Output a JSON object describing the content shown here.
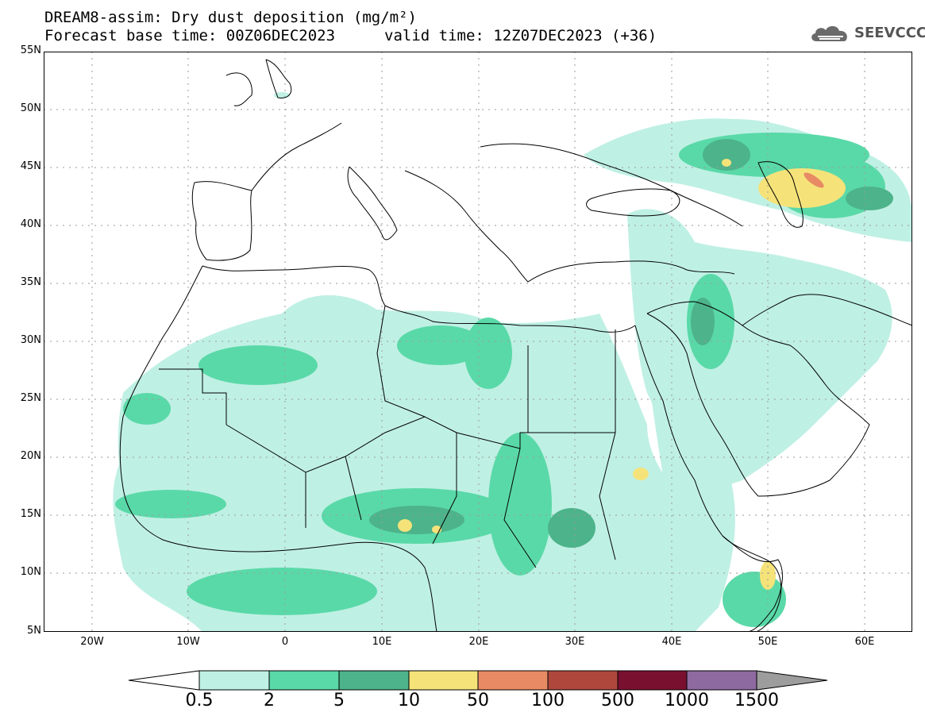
{
  "title": {
    "line1": "DREAM8-assim: Dry dust deposition (mg/m²)",
    "line2": "Forecast base time: 00Z06DEC2023",
    "valid": "valid time: 12Z07DEC2023 (+36)"
  },
  "logo": {
    "text": "SEEVCCC",
    "icon": "cloud-icon"
  },
  "axes": {
    "lat_labels": [
      "55N",
      "50N",
      "45N",
      "40N",
      "35N",
      "30N",
      "25N",
      "20N",
      "15N",
      "10N",
      "5N"
    ],
    "lon_labels": [
      "20W",
      "10W",
      "0",
      "10E",
      "20E",
      "30E",
      "40E",
      "50E",
      "60E"
    ]
  },
  "legend": {
    "labels": [
      "0.5",
      "2",
      "5",
      "10",
      "50",
      "100",
      "500",
      "1000",
      "1500"
    ],
    "colors": [
      "#bff0e4",
      "#5ad9a8",
      "#4db38a",
      "#f5e37a",
      "#e88b65",
      "#b0473c",
      "#7a1030",
      "#8d6a9f"
    ],
    "low_arrow_color": "#ffffff",
    "high_arrow_color": "#9d9d9d"
  },
  "colors": {
    "frame": "#000000",
    "coast": "#000000",
    "grid": "#9a9a9a"
  }
}
